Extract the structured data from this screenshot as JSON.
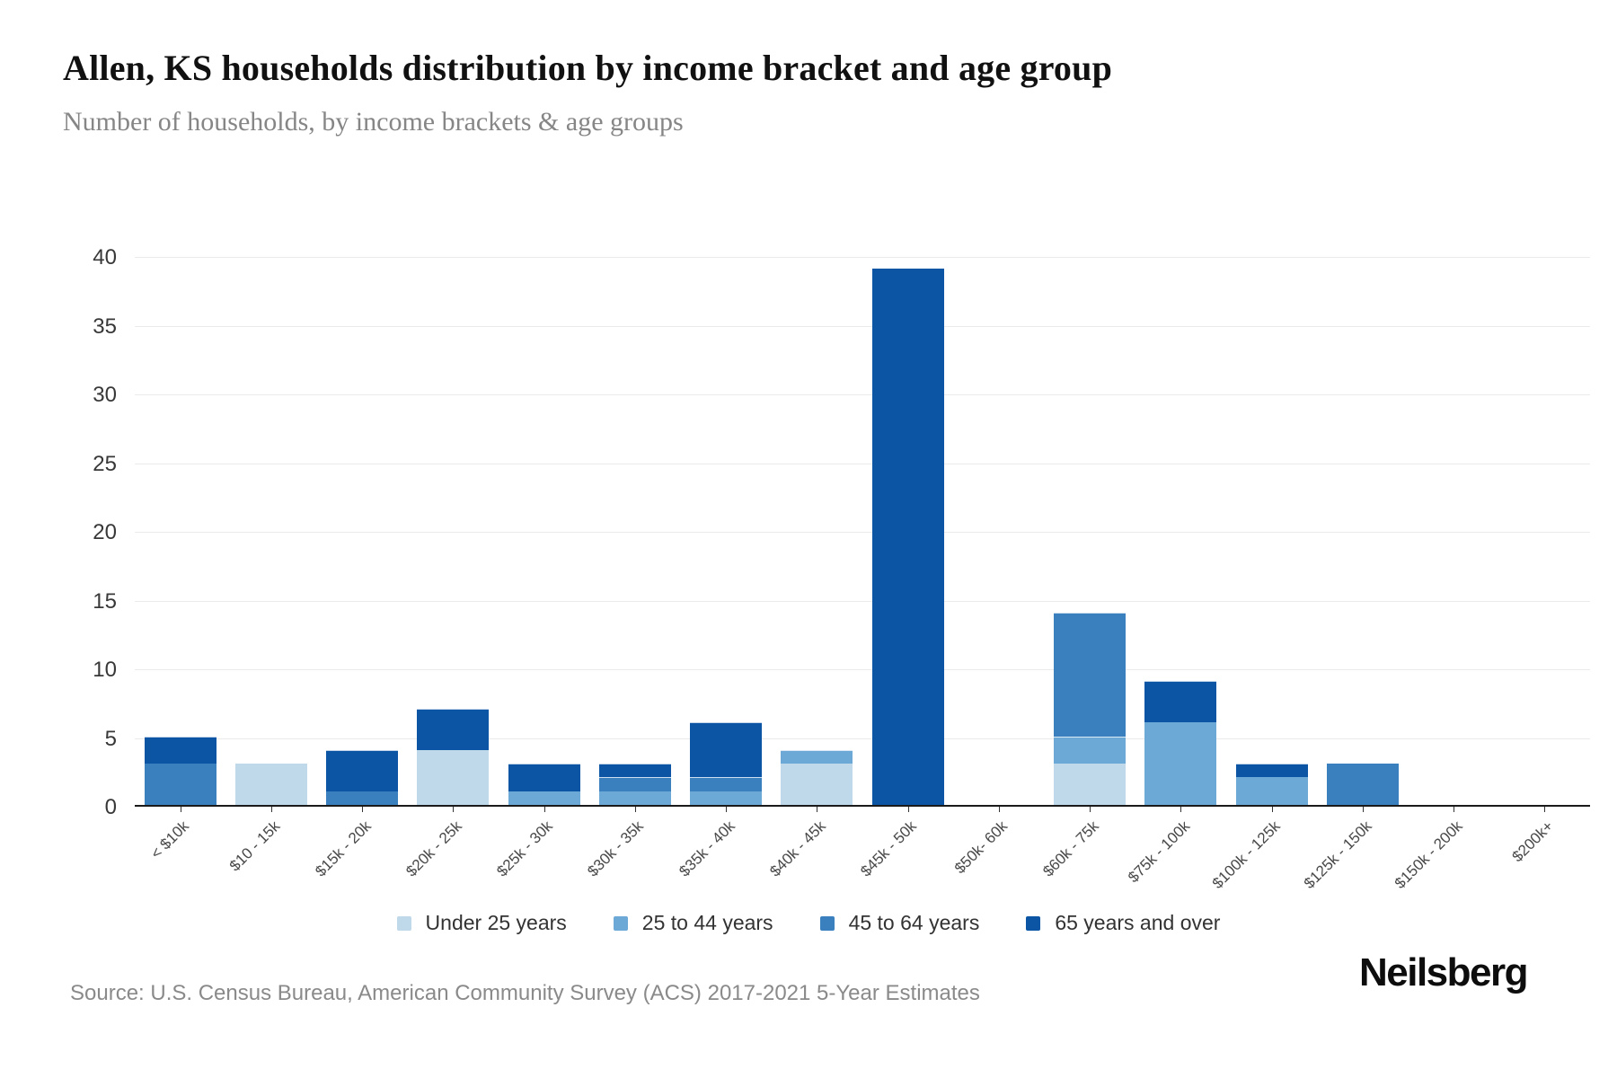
{
  "header": {
    "title": "Allen, KS households distribution by income bracket and age group",
    "subtitle": "Number of households, by income brackets & age groups"
  },
  "footer": {
    "source": "Source: U.S. Census Bureau, American Community Survey (ACS) 2017-2021 5-Year Estimates",
    "brand": "Neilsberg"
  },
  "chart_data": {
    "type": "bar",
    "stacked": true,
    "title": "Allen, KS households distribution by income bracket and age group",
    "subtitle": "Number of households, by income brackets & age groups",
    "categories": [
      "< $10k",
      "$10 - 15k",
      "$15k - 20k",
      "$20k - 25k",
      "$25k - 30k",
      "$30k - 35k",
      "$35k - 40k",
      "$40k - 45k",
      "$45k - 50k",
      "$50k- 60k",
      "$60k - 75k",
      "$75k - 100k",
      "$100k - 125k",
      "$125k - 150k",
      "$150k - 200k",
      "$200k+"
    ],
    "series": [
      {
        "name": "Under 25 years",
        "color": "#bfd8ea",
        "values": [
          0,
          3,
          0,
          4,
          0,
          0,
          0,
          3,
          0,
          0,
          3,
          0,
          0,
          0,
          0,
          0
        ]
      },
      {
        "name": "25 to 44 years",
        "color": "#6da9d6",
        "values": [
          0,
          0,
          0,
          0,
          1,
          1,
          1,
          1,
          0,
          0,
          2,
          6,
          2,
          0,
          0,
          0
        ]
      },
      {
        "name": "45 to 64 years",
        "color": "#3a80bf",
        "values": [
          3,
          0,
          1,
          0,
          0,
          1,
          1,
          0,
          0,
          0,
          9,
          0,
          0,
          3,
          0,
          0
        ]
      },
      {
        "name": "65 years and over",
        "color": "#0b55a4",
        "values": [
          2,
          0,
          3,
          3,
          2,
          1,
          4,
          0,
          39,
          0,
          0,
          3,
          1,
          0,
          0,
          0
        ]
      }
    ],
    "totals": [
      5,
      3,
      4,
      7,
      3,
      3,
      6,
      4,
      39,
      0,
      14,
      9,
      3,
      3,
      0,
      0
    ],
    "ylim": [
      0,
      40
    ],
    "ytick_step": 5,
    "grid": true,
    "legend_position": "bottom",
    "xlabel": "",
    "ylabel": ""
  }
}
